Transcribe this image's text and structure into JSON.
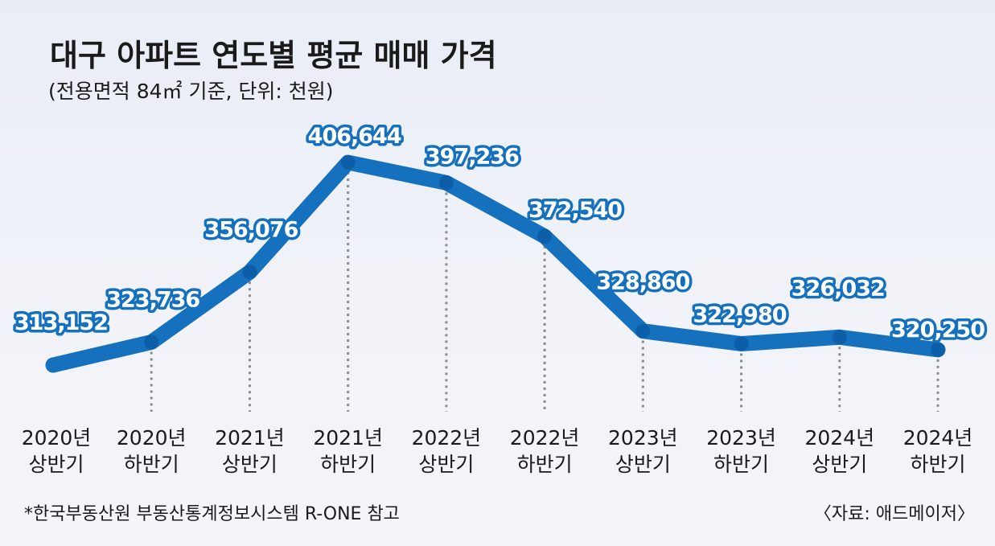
{
  "title": "대구 아파트 연도별 평균 매매 가격",
  "subtitle": "(전용면적 84㎡ 기준, 단위: 천원)",
  "footnote": "*한국부동산원 부동산통계정보시스템 R-ONE 참고",
  "source": "〈자료: 애드메이저〉",
  "colors": {
    "line": "#1570bd",
    "marker": "#0d5ea8",
    "label_stroke": "#1570bd"
  },
  "chart_data": {
    "type": "line",
    "title": "대구 아파트 연도별 평균 매매 가격",
    "subtitle": "(전용면적 84㎡ 기준, 단위: 천원)",
    "categories": [
      [
        "2020년",
        "상반기"
      ],
      [
        "2020년",
        "하반기"
      ],
      [
        "2021년",
        "상반기"
      ],
      [
        "2021년",
        "하반기"
      ],
      [
        "2022년",
        "상반기"
      ],
      [
        "2022년",
        "하반기"
      ],
      [
        "2023년",
        "상반기"
      ],
      [
        "2023년",
        "하반기"
      ],
      [
        "2024년",
        "상반기"
      ],
      [
        "2024년",
        "하반기"
      ]
    ],
    "values": [
      313152,
      323736,
      356076,
      406644,
      397236,
      372540,
      328860,
      322980,
      326032,
      320250
    ],
    "labels": [
      "313,152",
      "323,736",
      "356,076",
      "406,644",
      "397,236",
      "372,540",
      "328,860",
      "322,980",
      "326,032",
      "320,250"
    ],
    "grid": false,
    "legend": "none"
  }
}
